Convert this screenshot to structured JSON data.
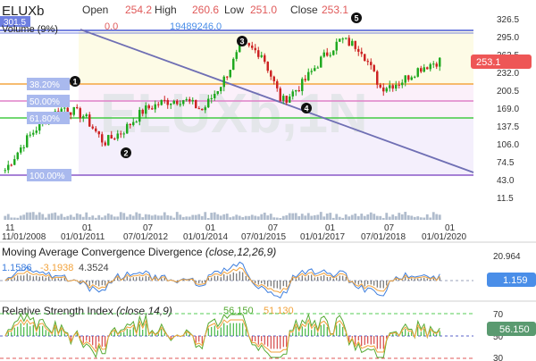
{
  "header": {
    "symbol": "ELUXb",
    "open_label": "Open",
    "open_value": "254.2",
    "high_label": "High",
    "high_value": "260.6",
    "low_label": "Low",
    "low_value": "251.0",
    "close_label": "Close",
    "close_value": "253.1",
    "volume_label": "Volume (9%)",
    "volume_value_1": "0.0",
    "volume_value_2": "19489246.0",
    "left_price_tag": "301.5"
  },
  "watermark": "ELUXb,1N",
  "colors": {
    "up": "#1ea81e",
    "down": "#cc2222",
    "fib_blue": "#4a5bd6",
    "fib_orange": "#f4a640",
    "fib_pink": "#e080c8",
    "fib_green": "#44cc44",
    "fib_purple": "#8a58c8",
    "trend": "#6f6fb4",
    "macd_blue": "#3f7fde",
    "macd_orange": "#f2a23a",
    "price_tag": "#ee5656",
    "macd_tag": "#4a8ee8",
    "rsi_tag": "#5a9a70"
  },
  "chart_data": [
    {
      "type": "line",
      "title": "ELUXb",
      "series_kind": "candlestick",
      "x": [
        "2008-11",
        "2009-06",
        "2010-01",
        "2010-07",
        "2011-01",
        "2011-07",
        "2012-01",
        "2012-07",
        "2013-01",
        "2013-07",
        "2014-01",
        "2014-07",
        "2015-01",
        "2015-07",
        "2016-01",
        "2016-07",
        "2017-01",
        "2017-07",
        "2018-01",
        "2018-07",
        "2019-01",
        "2019-07",
        "2020-01"
      ],
      "close": [
        60,
        110,
        150,
        170,
        155,
        108,
        130,
        165,
        180,
        185,
        165,
        215,
        280,
        265,
        180,
        210,
        255,
        290,
        275,
        205,
        215,
        240,
        253
      ],
      "ylim": [
        11.5,
        326.5
      ],
      "y_ticks": [
        "326.5",
        "295.0",
        "263.5",
        "232.0",
        "200.5",
        "169.0",
        "137.5",
        "106.0",
        "74.5",
        "43.0",
        "11.5"
      ],
      "x_tick_labels_top": [
        "11",
        "01",
        "07",
        "01",
        "07",
        "01",
        "07",
        "01"
      ],
      "x_tick_labels_bottom": [
        "11/01/2008",
        "01/01/2011",
        "07/01/2012",
        "01/01/2014",
        "07/01/2015",
        "01/01/2017",
        "07/01/2018",
        "01/01/2020"
      ],
      "last_price": "253.1",
      "fib_levels": [
        {
          "label": "",
          "value": 301.5
        },
        {
          "label": "38.20%",
          "value": 212
        },
        {
          "label": "50.00%",
          "value": 184
        },
        {
          "label": "61.80%",
          "value": 156
        },
        {
          "label": "100.00%",
          "value": 65
        }
      ],
      "wave_labels": [
        "1",
        "2",
        "3",
        "4",
        "5"
      ]
    },
    {
      "type": "line",
      "title": "Moving Average Convergence Divergence",
      "params": "(close,12,26,9)",
      "values_shown": [
        "1.1586",
        "-3.1938",
        "4.3524"
      ],
      "ylim": [
        -20,
        20.964
      ],
      "y_ticks": [
        "20.964"
      ],
      "last_value": "1.159"
    },
    {
      "type": "line",
      "title": "Relative Strength Index",
      "params": "(close,14,9)",
      "values_shown": [
        "56.150",
        "51.130"
      ],
      "ylim": [
        30,
        70
      ],
      "y_ticks": [
        "70",
        "50",
        "30"
      ],
      "last_value": "56.150"
    }
  ]
}
